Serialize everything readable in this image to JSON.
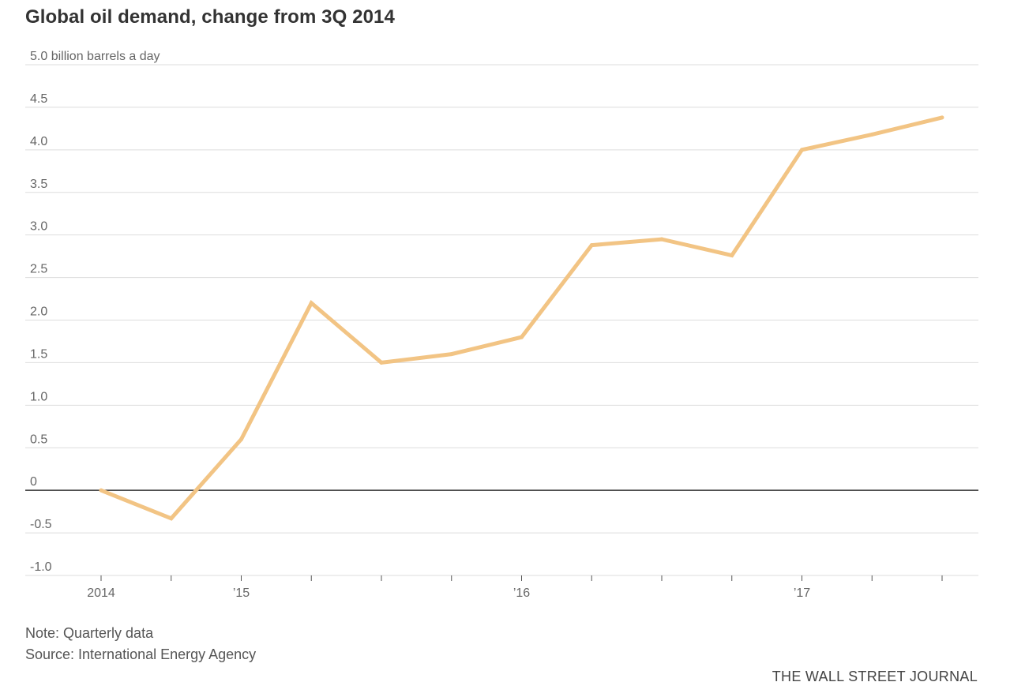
{
  "chart_data": {
    "type": "line",
    "title": "Global oil demand, change from 3Q 2014",
    "ylabel": "billion barrels a day",
    "yunit_label": "5.0 billion barrels a day",
    "ylim": [
      -1.0,
      5.0
    ],
    "yticks": [
      {
        "value": 5.0,
        "label": "5.0 billion barrels a day"
      },
      {
        "value": 4.5,
        "label": "4.5"
      },
      {
        "value": 4.0,
        "label": "4.0"
      },
      {
        "value": 3.5,
        "label": "3.5"
      },
      {
        "value": 3.0,
        "label": "3.0"
      },
      {
        "value": 2.5,
        "label": "2.5"
      },
      {
        "value": 2.0,
        "label": "2.0"
      },
      {
        "value": 1.5,
        "label": "1.5"
      },
      {
        "value": 1.0,
        "label": "1.0"
      },
      {
        "value": 0.5,
        "label": "0.5"
      },
      {
        "value": 0,
        "label": "0"
      },
      {
        "value": -0.5,
        "label": "-0.5"
      },
      {
        "value": -1.0,
        "label": "-1.0"
      }
    ],
    "xticks": [
      {
        "x": "2014 Q3",
        "label": "2014"
      },
      {
        "x": "2014 Q4",
        "label": ""
      },
      {
        "x": "2015 Q1",
        "label": "’15"
      },
      {
        "x": "2015 Q2",
        "label": ""
      },
      {
        "x": "2015 Q3",
        "label": ""
      },
      {
        "x": "2015 Q4",
        "label": ""
      },
      {
        "x": "2016 Q1",
        "label": "’16"
      },
      {
        "x": "2016 Q2",
        "label": ""
      },
      {
        "x": "2016 Q3",
        "label": ""
      },
      {
        "x": "2016 Q4",
        "label": ""
      },
      {
        "x": "2017 Q1",
        "label": "’17"
      },
      {
        "x": "2017 Q2",
        "label": ""
      },
      {
        "x": "2017 Q3",
        "label": ""
      }
    ],
    "x": [
      "2014 Q3",
      "2014 Q4",
      "2015 Q1",
      "2015 Q2",
      "2015 Q3",
      "2015 Q4",
      "2016 Q1",
      "2016 Q2",
      "2016 Q3",
      "2016 Q4",
      "2017 Q1",
      "2017 Q2",
      "2017 Q3"
    ],
    "series": [
      {
        "values": [
          0,
          -0.33,
          0.6,
          2.2,
          1.5,
          1.6,
          1.8,
          2.88,
          2.95,
          2.76,
          4.0,
          4.18,
          4.38
        ],
        "color": "#f2c484"
      }
    ],
    "grid": true,
    "zero_line": true
  },
  "footer": {
    "note": "Note: Quarterly data",
    "source": "Source: International Energy Agency",
    "brand": "THE WALL STREET JOURNAL"
  },
  "colors": {
    "line": "#f2c484",
    "grid": "#dddddd",
    "zero": "#333333"
  }
}
